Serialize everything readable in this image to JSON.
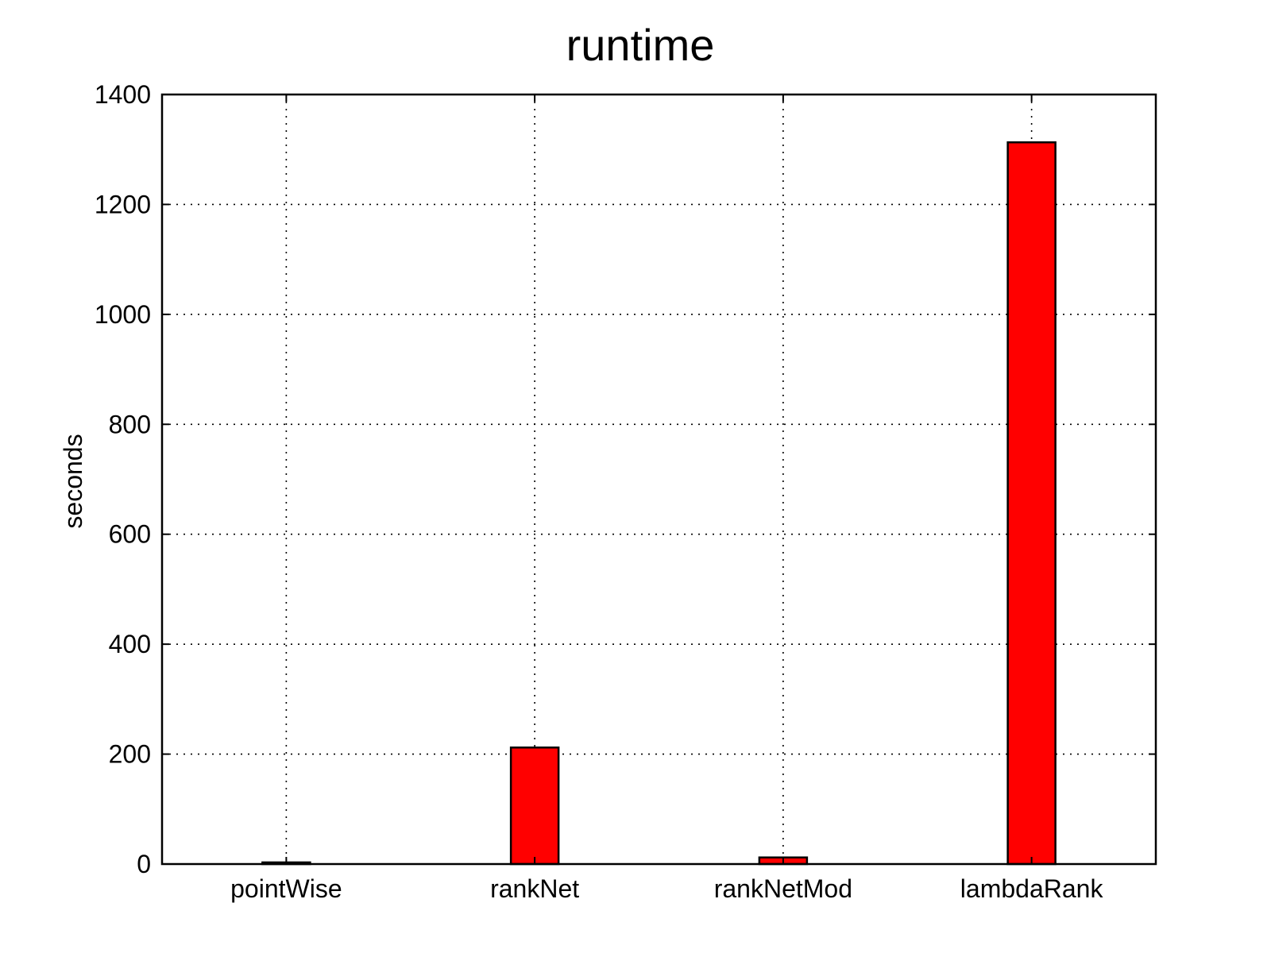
{
  "chart_data": {
    "type": "bar",
    "title": "runtime",
    "xlabel": "",
    "ylabel": "seconds",
    "categories": [
      "pointWise",
      "rankNet",
      "rankNetMod",
      "lambdaRank"
    ],
    "values": [
      3,
      212,
      12,
      1313
    ],
    "ylim": [
      0,
      1400
    ],
    "yticks": [
      0,
      200,
      400,
      600,
      800,
      1000,
      1200,
      1400
    ],
    "grid": true,
    "legend": "none",
    "bar_color": "#ff0000"
  }
}
